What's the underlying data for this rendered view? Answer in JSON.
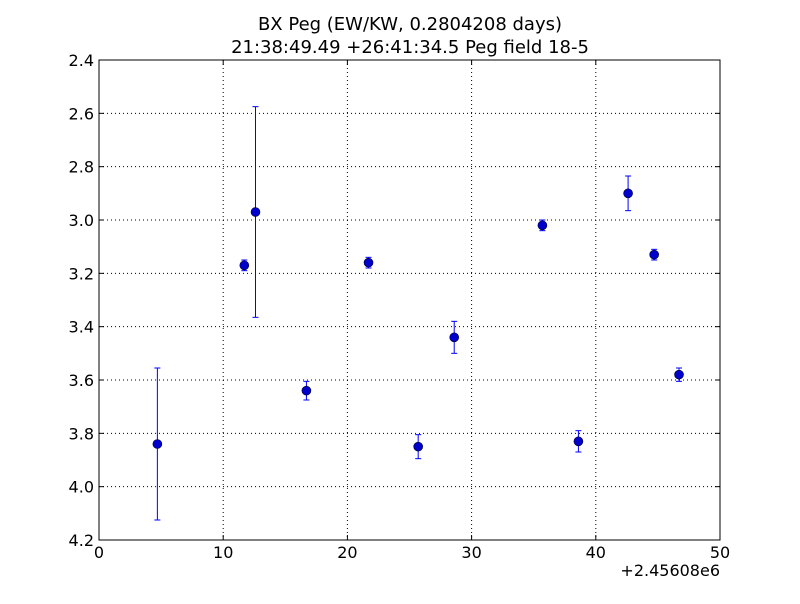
{
  "chart_data": {
    "type": "scatter",
    "title_line1": "BX Peg (EW/KW, 0.2804208 days)",
    "title_line2": "21:38:49.49 +26:41:34.5 Peg field 18-5",
    "xlabel": "",
    "ylabel": "",
    "x_offset_label": "+2.45608e6",
    "xlim": [
      0,
      50
    ],
    "ylim": [
      2.4,
      4.2
    ],
    "y_inverted": true,
    "x_ticks": [
      0,
      10,
      20,
      30,
      40,
      50
    ],
    "x_tick_labels": [
      "0",
      "10",
      "20",
      "30",
      "40",
      "50"
    ],
    "y_ticks": [
      2.4,
      2.6,
      2.8,
      3.0,
      3.2,
      3.4,
      3.6,
      3.8,
      4.0,
      4.2
    ],
    "y_tick_labels": [
      "2.4",
      "2.6",
      "2.8",
      "3.0",
      "3.2",
      "3.4",
      "3.6",
      "3.8",
      "4.0",
      "4.2"
    ],
    "grid": true,
    "marker_color": "#0000cc",
    "errorbar_color": "#0000ff",
    "points": [
      {
        "x": 4.7,
        "y": 3.84,
        "err": 0.285
      },
      {
        "x": 11.7,
        "y": 3.17,
        "err": 0.02
      },
      {
        "x": 12.6,
        "y": 2.97,
        "err": 0.395
      },
      {
        "x": 16.7,
        "y": 3.64,
        "err": 0.035
      },
      {
        "x": 21.7,
        "y": 3.16,
        "err": 0.02
      },
      {
        "x": 25.7,
        "y": 3.85,
        "err": 0.045
      },
      {
        "x": 28.6,
        "y": 3.44,
        "err": 0.06
      },
      {
        "x": 35.7,
        "y": 3.02,
        "err": 0.02
      },
      {
        "x": 38.6,
        "y": 3.83,
        "err": 0.04
      },
      {
        "x": 42.6,
        "y": 2.9,
        "err": 0.065
      },
      {
        "x": 44.7,
        "y": 3.13,
        "err": 0.02
      },
      {
        "x": 46.7,
        "y": 3.58,
        "err": 0.025
      }
    ]
  }
}
